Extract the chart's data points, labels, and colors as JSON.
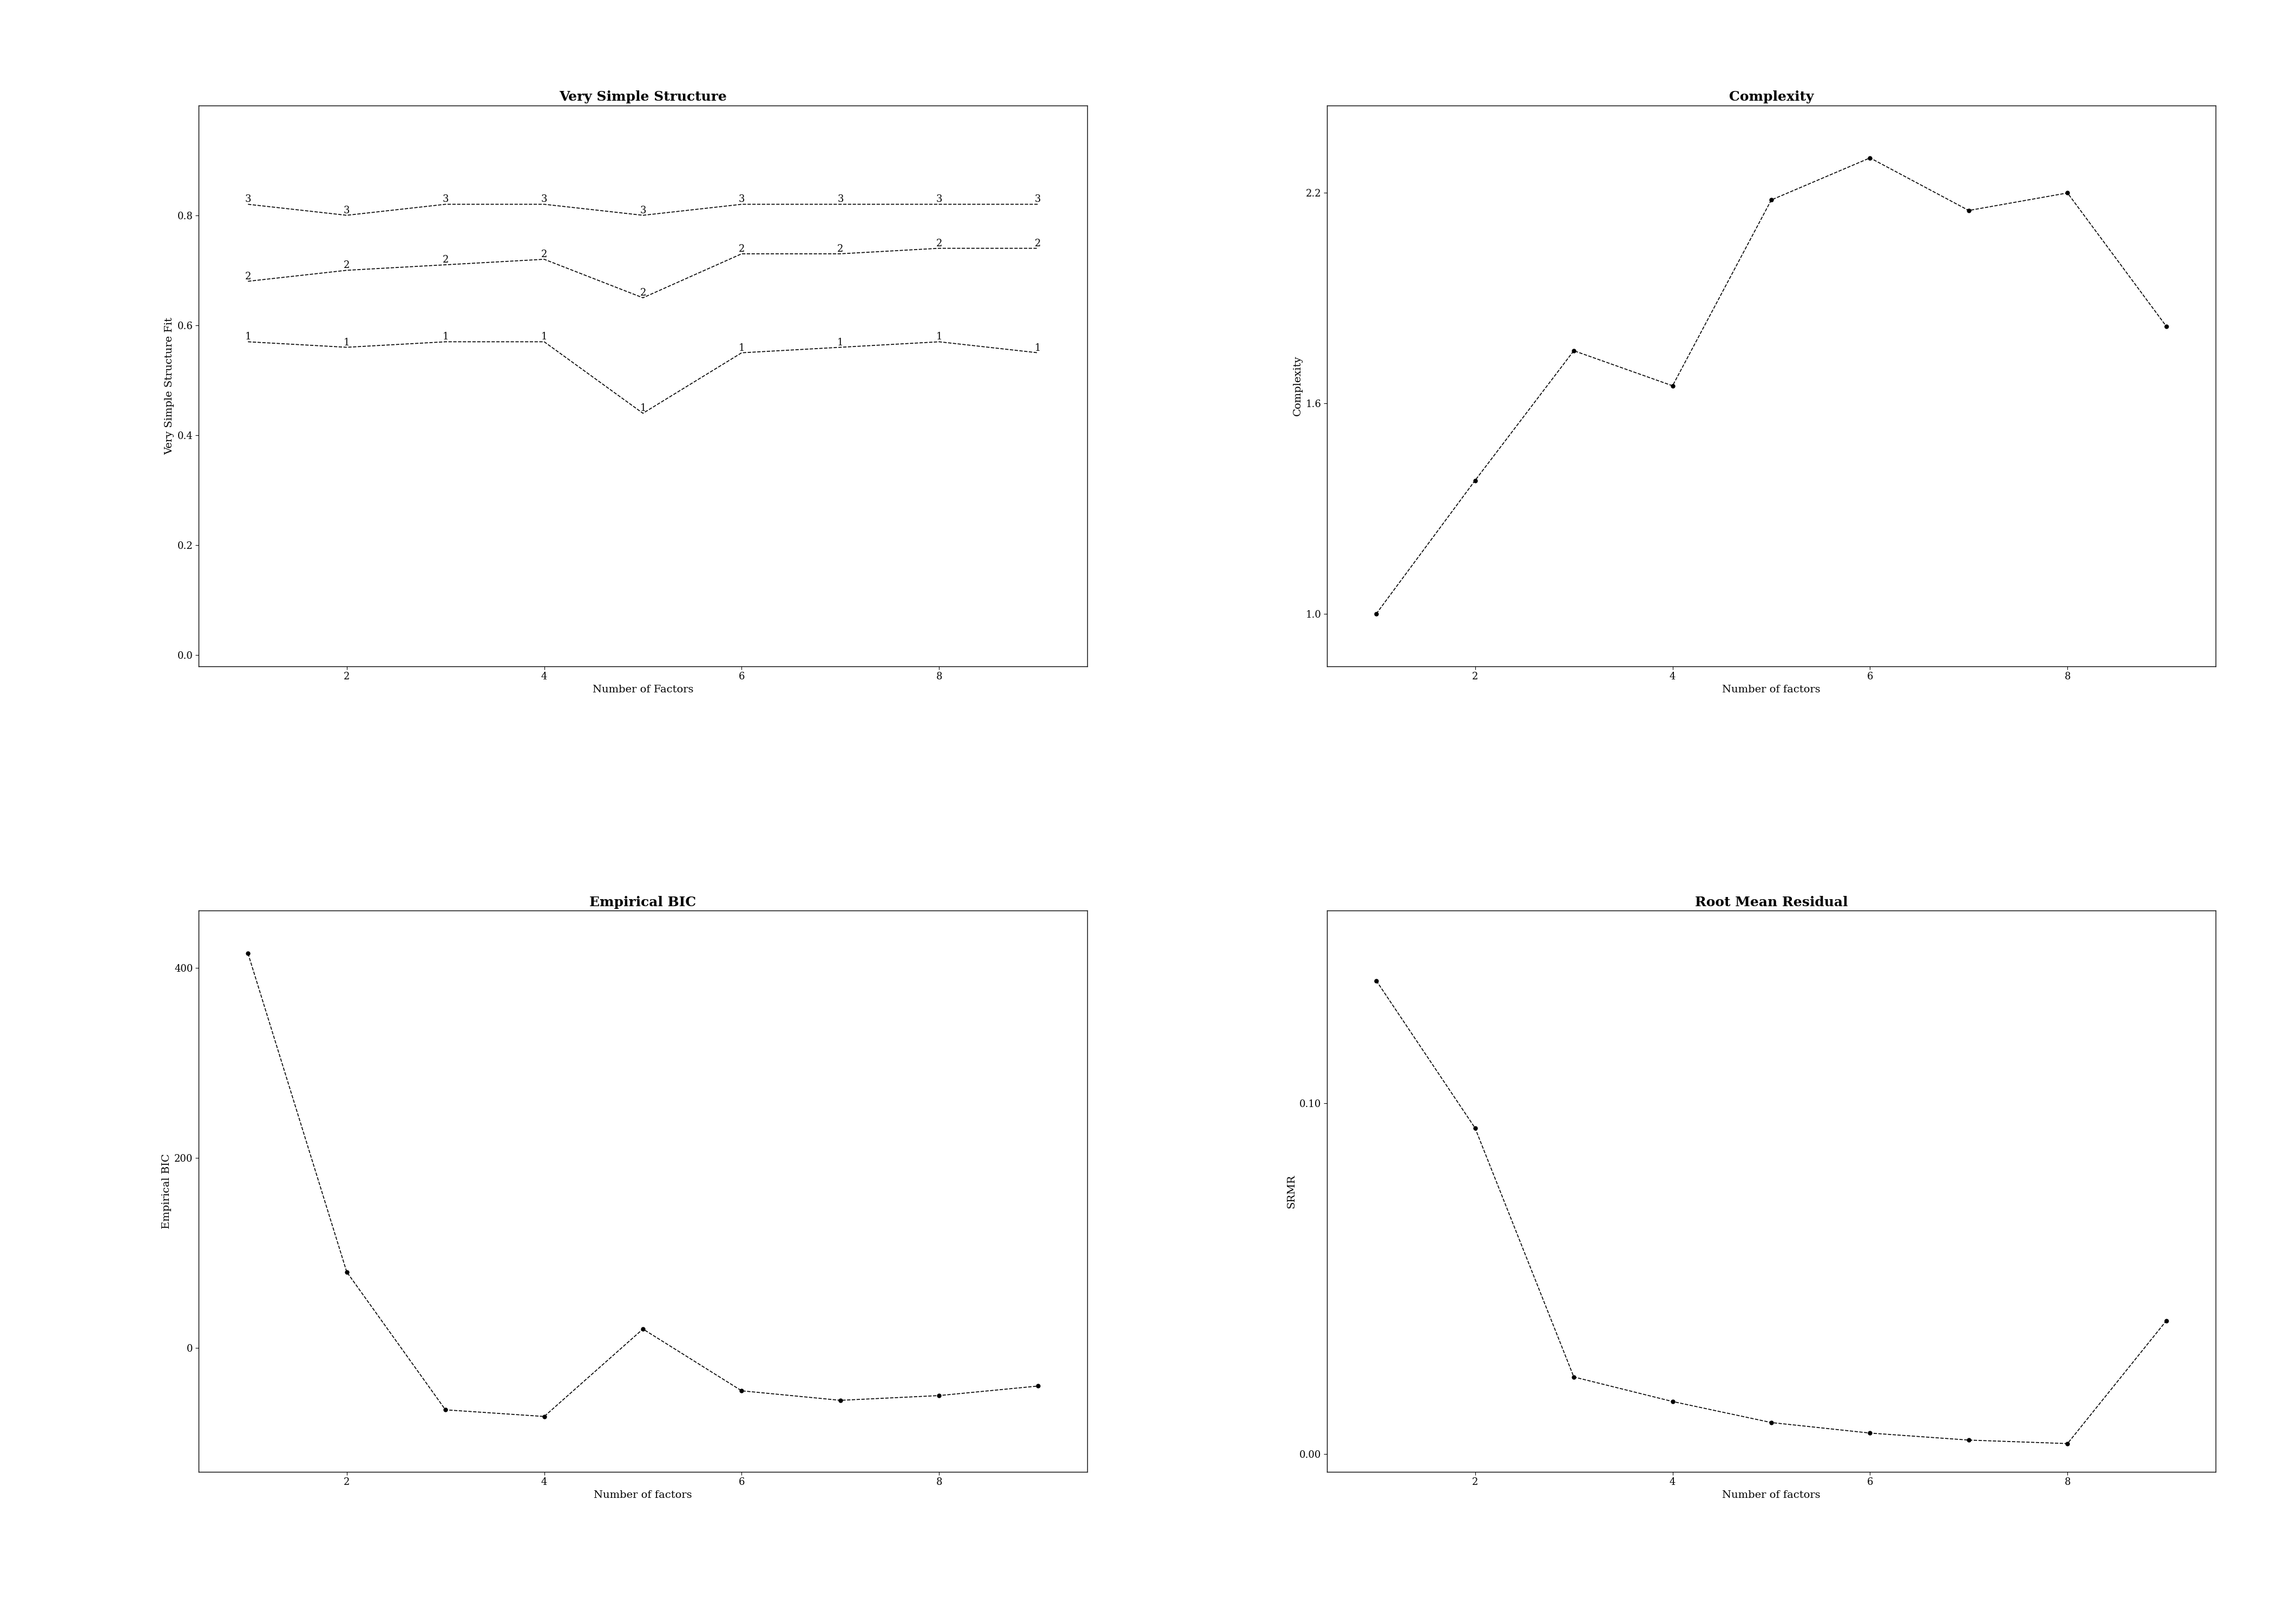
{
  "vss_title": "Very Simple Structure",
  "complexity_title": "Complexity",
  "ebic_title": "Empirical BIC",
  "rmr_title": "Root Mean Residual",
  "vss_xlabel": "Number of Factors",
  "complexity_xlabel": "Number of factors",
  "ebic_xlabel": "Number of factors",
  "rmr_xlabel": "Number of factors",
  "vss_ylabel": "Very Simple Structure Fit",
  "complexity_ylabel": "Complexity",
  "ebic_ylabel": "Empirical BIC",
  "rmr_ylabel": "SRMR",
  "x": [
    1,
    2,
    3,
    4,
    5,
    6,
    7,
    8,
    9
  ],
  "vss_line1": [
    0.57,
    0.56,
    0.57,
    0.57,
    0.44,
    0.55,
    0.56,
    0.57,
    0.55
  ],
  "vss_line2": [
    0.68,
    0.7,
    0.71,
    0.72,
    0.65,
    0.73,
    0.73,
    0.74,
    0.74
  ],
  "vss_line3": [
    0.82,
    0.8,
    0.82,
    0.82,
    0.8,
    0.82,
    0.82,
    0.82,
    0.82
  ],
  "complexity": [
    1.0,
    1.38,
    1.75,
    1.65,
    2.18,
    2.3,
    2.15,
    2.2,
    1.82
  ],
  "ebic": [
    415,
    80,
    -65,
    -72,
    20,
    -45,
    -55,
    -50,
    -40
  ],
  "rmr": [
    0.135,
    0.093,
    0.022,
    0.015,
    0.009,
    0.006,
    0.004,
    0.003,
    0.038
  ],
  "background_color": "#ffffff",
  "line_color": "#000000",
  "linestyle": "--",
  "vss_ylim": [
    -0.02,
    1.0
  ],
  "vss_yticks": [
    0.0,
    0.2,
    0.4,
    0.6,
    0.8
  ],
  "complexity_ylim": [
    0.85,
    2.45
  ],
  "complexity_yticks": [
    1.0,
    1.6,
    2.2
  ],
  "ebic_ylim": [
    -130,
    460
  ],
  "ebic_yticks": [
    0,
    200,
    400
  ],
  "rmr_ylim": [
    -0.005,
    0.155
  ],
  "rmr_yticks": [
    0.0,
    0.1
  ],
  "xticks": [
    2,
    4,
    6,
    8
  ],
  "title_fontsize": 18,
  "label_fontsize": 14,
  "tick_fontsize": 13,
  "annotation_fontsize": 13
}
